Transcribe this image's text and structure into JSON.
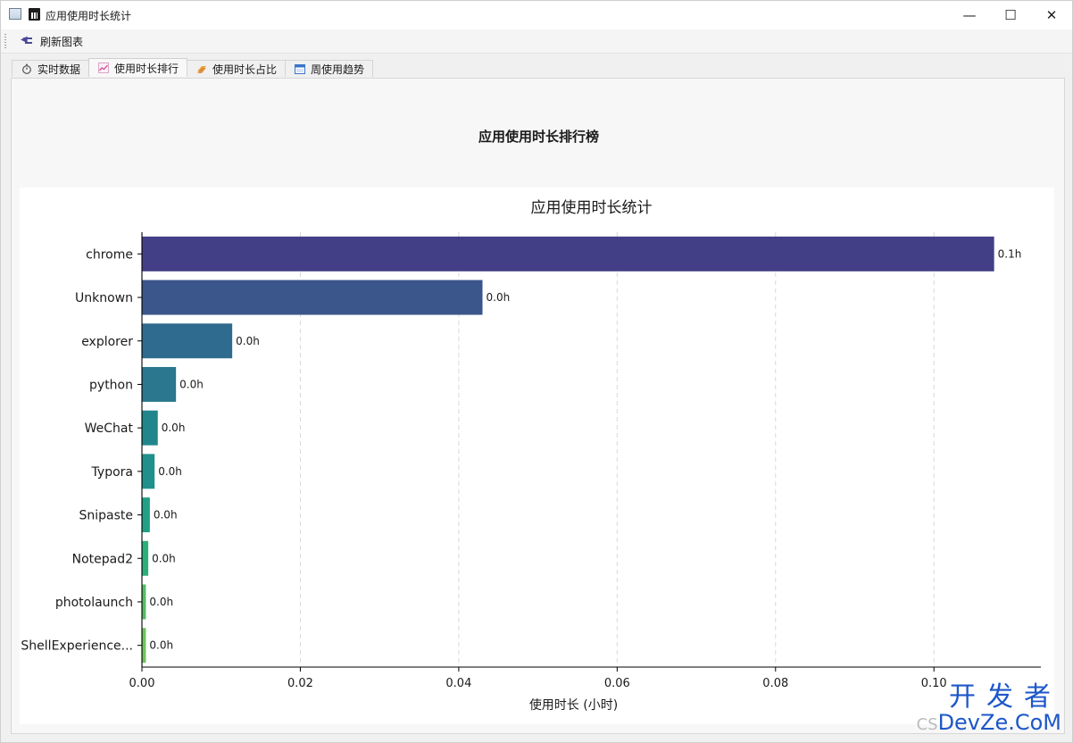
{
  "window": {
    "title": "应用使用时长统计",
    "controls": {
      "minimize": "—",
      "maximize": "☐",
      "close": "✕"
    }
  },
  "toolbar": {
    "refresh_label": "刷新图表"
  },
  "tabs": [
    {
      "label": "实时数据",
      "icon": "stopwatch-icon",
      "active": false
    },
    {
      "label": "使用时长排行",
      "icon": "line-chart-icon",
      "active": true
    },
    {
      "label": "使用时长占比",
      "icon": "pie-chart-icon",
      "active": false
    },
    {
      "label": "周使用趋势",
      "icon": "calendar-icon",
      "active": false
    }
  ],
  "panel": {
    "heading": "应用使用时长排行榜"
  },
  "chart_data": {
    "type": "bar",
    "orientation": "horizontal",
    "title": "应用使用时长统计",
    "xlabel": "使用时长 (小时)",
    "ylabel": "",
    "xlim": [
      0,
      0.1135
    ],
    "xticks": [
      "0.00",
      "0.02",
      "0.04",
      "0.06",
      "0.08",
      "0.10"
    ],
    "grid": "vertical-dashed",
    "categories": [
      "chrome",
      "Unknown",
      "explorer",
      "python",
      "WeChat",
      "Typora",
      "Snipaste",
      "Notepad2",
      "photolaunch",
      "ShellExperience..."
    ],
    "values": [
      0.1076,
      0.043,
      0.0114,
      0.0043,
      0.002,
      0.0016,
      0.001,
      0.0008,
      0.0005,
      0.0005
    ],
    "value_labels": [
      "0.1h",
      "0.0h",
      "0.0h",
      "0.0h",
      "0.0h",
      "0.0h",
      "0.0h",
      "0.0h",
      "0.0h",
      "0.0h"
    ],
    "colors": [
      "#433f86",
      "#3a568a",
      "#2f6b8e",
      "#2a778e",
      "#21868b",
      "#1f918a",
      "#21a085",
      "#2cae7b",
      "#54bd67",
      "#6fc45b"
    ]
  },
  "watermark": {
    "line1": "开发者",
    "prefix": "CS",
    "line2": "DevZe.CoM"
  }
}
